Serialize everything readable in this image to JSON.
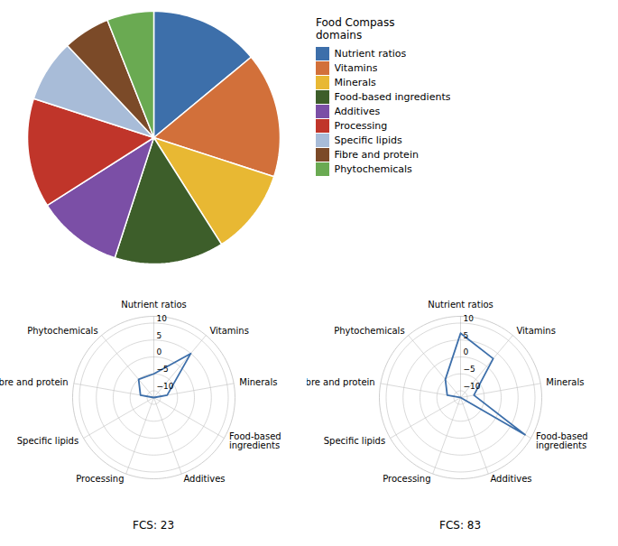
{
  "chart_data": [
    {
      "type": "pie",
      "categories": [
        "Nutrient ratios",
        "Vitamins",
        "Minerals",
        "Food-based ingredients",
        "Additives",
        "Processing",
        "Specific lipids",
        "Fibre and protein",
        "Phytochemicals"
      ],
      "values": [
        14,
        16,
        11,
        14,
        11,
        14,
        8,
        6,
        6
      ],
      "colors": [
        "#3d6faa",
        "#d2703a",
        "#e8b833",
        "#3d5e2a",
        "#7b4fa6",
        "#c0352a",
        "#a8bcd8",
        "#7b4a28",
        "#6aaa52"
      ],
      "legend_title": "Food Compass\ndomains",
      "legend": "right"
    },
    {
      "type": "radar",
      "title": "FCS: 23",
      "categories": [
        "Nutrient ratios",
        "Vitamins",
        "Minerals",
        "Food-based\ningredients",
        "Additives",
        "Processing",
        "Specific lipids",
        "Fibre and protein",
        "Phytochemicals"
      ],
      "values": [
        -5,
        5,
        -8,
        -12,
        -12,
        -12,
        -12,
        -8,
        -5
      ],
      "color": "#3d6faa",
      "ylim": [
        -12,
        12
      ],
      "yticks": [
        {
          "value": -10,
          "label": "−10"
        },
        {
          "value": -5,
          "label": "−5"
        },
        0,
        5,
        10
      ],
      "grid": true
    },
    {
      "type": "radar",
      "title": "FCS: 83",
      "categories": [
        "Nutrient ratios",
        "Vitamins",
        "Minerals",
        "Food-based\ningredients",
        "Additives",
        "Processing",
        "Specific lipids",
        "Fibre and protein",
        "Phytochemicals"
      ],
      "values": [
        7,
        3,
        -8,
        10,
        -12,
        -12,
        -12,
        -8,
        -5
      ],
      "color": "#3d6faa",
      "ylim": [
        -12,
        12
      ],
      "yticks": [
        {
          "value": -10,
          "label": "−10"
        },
        {
          "value": -5,
          "label": "−5"
        },
        0,
        5,
        10
      ],
      "grid": true
    }
  ]
}
